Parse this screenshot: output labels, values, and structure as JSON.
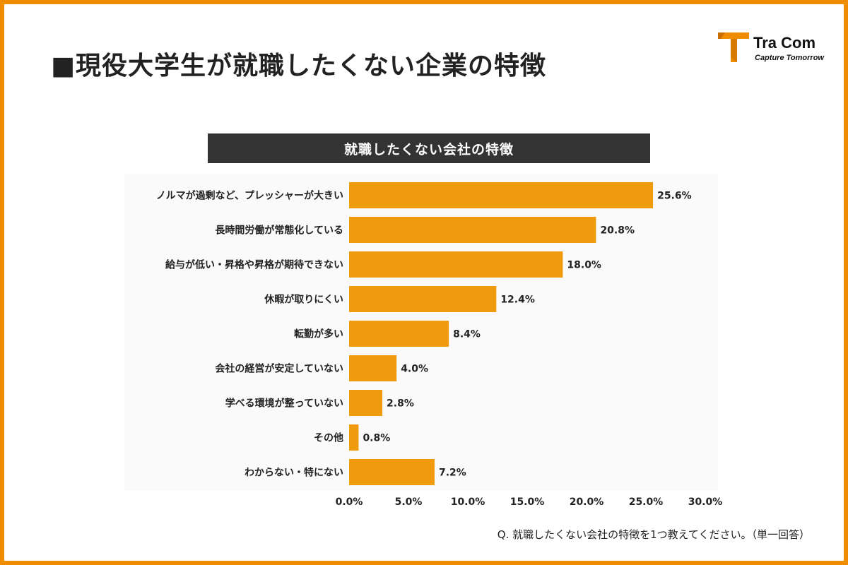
{
  "page": {
    "title": "■現役大学生が就職したくない企業の特徴",
    "footnote": "Q. 就職したくない会社の特徴を1つ教えてください。（単一回答）"
  },
  "logo": {
    "name": "Tra Com",
    "tagline": "Capture Tomorrow",
    "icon": "tracom-logo-icon"
  },
  "colors": {
    "accent": "#f08c00",
    "bar": "#f09a0e",
    "header_bg": "#333333",
    "plot_bg": "#fafafa"
  },
  "chart_data": {
    "type": "bar",
    "orientation": "horizontal",
    "title": "就職したくない会社の特徴",
    "categories": [
      "ノルマが過剰など、プレッシャーが大きい",
      "長時間労働が常態化している",
      "給与が低い・昇格や昇格が期待できない",
      "休暇が取りにくい",
      "転勤が多い",
      "会社の経営が安定していない",
      "学べる環境が整っていない",
      "その他",
      "わからない・特にない"
    ],
    "values": [
      25.6,
      20.8,
      18.0,
      12.4,
      8.4,
      4.0,
      2.8,
      0.8,
      7.2
    ],
    "value_labels": [
      "25.6%",
      "20.8%",
      "18.0%",
      "12.4%",
      "8.4%",
      "4.0%",
      "2.8%",
      "0.8%",
      "7.2%"
    ],
    "xlim": [
      0,
      30
    ],
    "xticks": [
      "0.0%",
      "5.0%",
      "10.0%",
      "15.0%",
      "20.0%",
      "25.0%",
      "30.0%"
    ],
    "xlabel": "",
    "ylabel": "",
    "grid": false
  }
}
